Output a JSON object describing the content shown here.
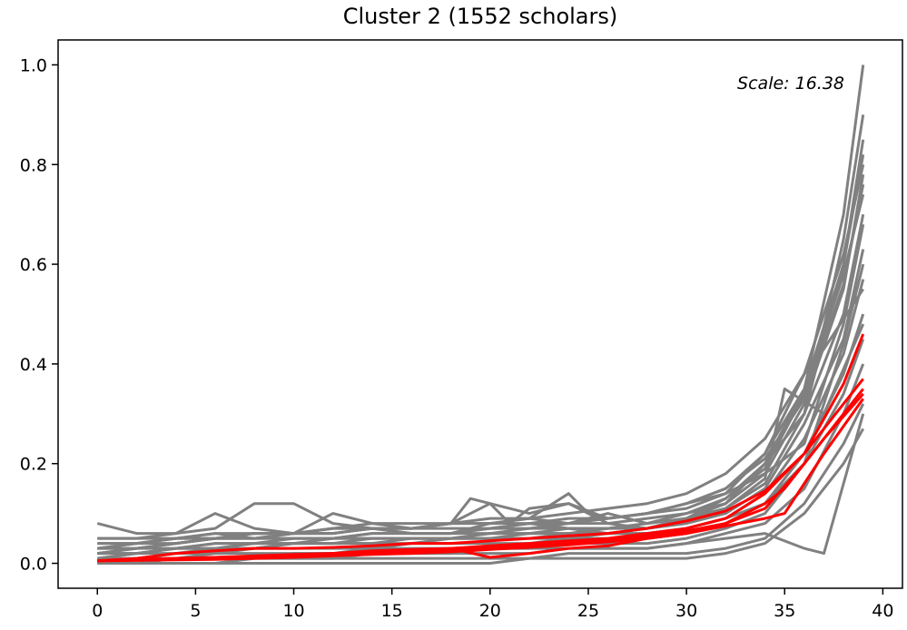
{
  "chart_data": {
    "type": "line",
    "title": "Cluster 2 (1552 scholars)",
    "xlabel": "",
    "ylabel": "",
    "xlim": [
      -2,
      41
    ],
    "ylim": [
      -0.05,
      1.05
    ],
    "x_ticks": [
      0,
      5,
      10,
      15,
      20,
      25,
      30,
      35,
      40
    ],
    "x_tick_labels": [
      "0",
      "5",
      "10",
      "15",
      "20",
      "25",
      "30",
      "35",
      "40"
    ],
    "y_ticks": [
      0.0,
      0.2,
      0.4,
      0.6,
      0.8,
      1.0
    ],
    "y_tick_labels": [
      "0.0",
      "0.2",
      "0.4",
      "0.6",
      "0.8",
      "1.0"
    ],
    "annotation": "Scale: 16.38",
    "grid": false,
    "colors": {
      "background_series": "#808080",
      "highlight_series": "#ff0000"
    },
    "background_series": [
      {
        "x": [
          0,
          2,
          4,
          6,
          8,
          10,
          12,
          14,
          16,
          18,
          20,
          22,
          24,
          26,
          28,
          30,
          32,
          34,
          36,
          38,
          39
        ],
        "y": [
          0.04,
          0.04,
          0.05,
          0.05,
          0.05,
          0.05,
          0.05,
          0.05,
          0.05,
          0.05,
          0.05,
          0.06,
          0.06,
          0.06,
          0.07,
          0.09,
          0.12,
          0.2,
          0.35,
          0.7,
          1.0
        ]
      },
      {
        "x": [
          0,
          2,
          4,
          6,
          8,
          10,
          12,
          14,
          16,
          18,
          20,
          22,
          24,
          26,
          28,
          30,
          32,
          34,
          36,
          38,
          39
        ],
        "y": [
          0.08,
          0.06,
          0.06,
          0.07,
          0.12,
          0.12,
          0.08,
          0.07,
          0.06,
          0.06,
          0.07,
          0.08,
          0.07,
          0.06,
          0.07,
          0.09,
          0.12,
          0.2,
          0.3,
          0.65,
          0.9
        ]
      },
      {
        "x": [
          0,
          2,
          4,
          6,
          8,
          10,
          12,
          14,
          16,
          18,
          20,
          22,
          24,
          26,
          28,
          30,
          32,
          34,
          36,
          38,
          39
        ],
        "y": [
          0.05,
          0.05,
          0.06,
          0.1,
          0.07,
          0.06,
          0.1,
          0.08,
          0.07,
          0.08,
          0.12,
          0.1,
          0.12,
          0.08,
          0.07,
          0.09,
          0.13,
          0.2,
          0.3,
          0.6,
          0.85
        ]
      },
      {
        "x": [
          0,
          2,
          4,
          6,
          8,
          10,
          12,
          14,
          16,
          18,
          20,
          22,
          24,
          26,
          28,
          30,
          32,
          34,
          36,
          38,
          39
        ],
        "y": [
          0.03,
          0.04,
          0.05,
          0.06,
          0.05,
          0.06,
          0.06,
          0.07,
          0.06,
          0.06,
          0.08,
          0.09,
          0.08,
          0.1,
          0.08,
          0.1,
          0.12,
          0.18,
          0.32,
          0.55,
          0.78
        ]
      },
      {
        "x": [
          0,
          2,
          4,
          6,
          8,
          10,
          12,
          14,
          16,
          18,
          20,
          22,
          24,
          26,
          28,
          30,
          32,
          34,
          36,
          38,
          39
        ],
        "y": [
          0.02,
          0.03,
          0.04,
          0.05,
          0.05,
          0.05,
          0.05,
          0.06,
          0.06,
          0.06,
          0.06,
          0.07,
          0.07,
          0.07,
          0.08,
          0.09,
          0.11,
          0.16,
          0.3,
          0.5,
          0.7
        ]
      },
      {
        "x": [
          0,
          2,
          4,
          6,
          8,
          10,
          12,
          14,
          16,
          18,
          20,
          22,
          24,
          26,
          28,
          30,
          32,
          34,
          36,
          38,
          39
        ],
        "y": [
          0.02,
          0.03,
          0.03,
          0.04,
          0.04,
          0.04,
          0.05,
          0.05,
          0.05,
          0.05,
          0.06,
          0.06,
          0.06,
          0.07,
          0.07,
          0.08,
          0.1,
          0.15,
          0.28,
          0.45,
          0.63
        ]
      },
      {
        "x": [
          0,
          2,
          4,
          6,
          8,
          10,
          12,
          14,
          16,
          18,
          20,
          22,
          24,
          26,
          28,
          30,
          32,
          34,
          36,
          38,
          39
        ],
        "y": [
          0.01,
          0.02,
          0.03,
          0.03,
          0.04,
          0.04,
          0.04,
          0.04,
          0.05,
          0.05,
          0.05,
          0.05,
          0.05,
          0.06,
          0.06,
          0.07,
          0.09,
          0.14,
          0.25,
          0.42,
          0.57
        ]
      },
      {
        "x": [
          0,
          2,
          4,
          6,
          8,
          10,
          12,
          14,
          16,
          18,
          20,
          22,
          24,
          26,
          28,
          30,
          32,
          34,
          36,
          38,
          39
        ],
        "y": [
          0.01,
          0.01,
          0.02,
          0.02,
          0.03,
          0.03,
          0.03,
          0.03,
          0.04,
          0.04,
          0.04,
          0.04,
          0.05,
          0.05,
          0.05,
          0.06,
          0.08,
          0.12,
          0.22,
          0.38,
          0.5
        ]
      },
      {
        "x": [
          0,
          2,
          4,
          6,
          8,
          10,
          12,
          14,
          16,
          18,
          20,
          22,
          24,
          26,
          28,
          30,
          32,
          34,
          36,
          38,
          39
        ],
        "y": [
          0.0,
          0.01,
          0.01,
          0.02,
          0.02,
          0.02,
          0.02,
          0.03,
          0.03,
          0.03,
          0.03,
          0.03,
          0.04,
          0.04,
          0.04,
          0.05,
          0.07,
          0.1,
          0.2,
          0.34,
          0.45
        ]
      },
      {
        "x": [
          0,
          2,
          4,
          6,
          8,
          10,
          12,
          14,
          16,
          18,
          20,
          22,
          24,
          26,
          28,
          30,
          32,
          34,
          36,
          38,
          39
        ],
        "y": [
          0.0,
          0.0,
          0.01,
          0.01,
          0.01,
          0.01,
          0.01,
          0.02,
          0.02,
          0.02,
          0.02,
          0.02,
          0.03,
          0.03,
          0.03,
          0.04,
          0.06,
          0.08,
          0.15,
          0.3,
          0.4
        ]
      },
      {
        "x": [
          0,
          2,
          4,
          6,
          8,
          10,
          12,
          14,
          16,
          18,
          20,
          22,
          24,
          26,
          28,
          30,
          32,
          34,
          36,
          38,
          39
        ],
        "y": [
          0.0,
          0.0,
          0.0,
          0.0,
          0.01,
          0.01,
          0.01,
          0.01,
          0.01,
          0.01,
          0.01,
          0.01,
          0.02,
          0.02,
          0.02,
          0.02,
          0.03,
          0.05,
          0.12,
          0.24,
          0.32
        ]
      },
      {
        "x": [
          0,
          2,
          4,
          6,
          8,
          10,
          12,
          14,
          16,
          18,
          20,
          22,
          24,
          26,
          28,
          30,
          32,
          34,
          36,
          38,
          39
        ],
        "y": [
          0.0,
          0.0,
          0.0,
          0.0,
          0.0,
          0.0,
          0.0,
          0.0,
          0.0,
          0.0,
          0.0,
          0.01,
          0.01,
          0.01,
          0.01,
          0.01,
          0.02,
          0.04,
          0.1,
          0.2,
          0.27
        ]
      },
      {
        "x": [
          0,
          2,
          4,
          6,
          8,
          10,
          12,
          14,
          16,
          18,
          20,
          22,
          24,
          26,
          28,
          30,
          32,
          34,
          36,
          38,
          39
        ],
        "y": [
          0.03,
          0.04,
          0.04,
          0.05,
          0.06,
          0.06,
          0.07,
          0.07,
          0.07,
          0.08,
          0.08,
          0.08,
          0.09,
          0.09,
          0.1,
          0.11,
          0.14,
          0.22,
          0.38,
          0.62,
          0.8
        ]
      },
      {
        "x": [
          0,
          2,
          4,
          6,
          8,
          10,
          12,
          14,
          16,
          18,
          20,
          22,
          24,
          26,
          28,
          30,
          32,
          34,
          36,
          38,
          39
        ],
        "y": [
          0.02,
          0.02,
          0.03,
          0.04,
          0.04,
          0.05,
          0.05,
          0.06,
          0.06,
          0.06,
          0.07,
          0.07,
          0.08,
          0.08,
          0.09,
          0.1,
          0.13,
          0.19,
          0.34,
          0.58,
          0.74
        ]
      },
      {
        "x": [
          0,
          2,
          4,
          6,
          8,
          10,
          12,
          14,
          16,
          18,
          20,
          22,
          24,
          26,
          28,
          30,
          32,
          34,
          36,
          38,
          39
        ],
        "y": [
          0.05,
          0.05,
          0.05,
          0.06,
          0.06,
          0.06,
          0.06,
          0.07,
          0.07,
          0.07,
          0.07,
          0.08,
          0.08,
          0.09,
          0.1,
          0.12,
          0.14,
          0.18,
          0.24,
          0.48,
          0.68
        ]
      },
      {
        "x": [
          0,
          2,
          4,
          6,
          8,
          10,
          12,
          14,
          16,
          18,
          20,
          22,
          24,
          26,
          28,
          30,
          32,
          34,
          36,
          38,
          39
        ],
        "y": [
          0.01,
          0.02,
          0.02,
          0.03,
          0.03,
          0.04,
          0.04,
          0.04,
          0.04,
          0.05,
          0.05,
          0.05,
          0.06,
          0.06,
          0.06,
          0.07,
          0.09,
          0.12,
          0.2,
          0.44,
          0.6
        ]
      },
      {
        "x": [
          0,
          2,
          4,
          6,
          8,
          10,
          12,
          14,
          16,
          18,
          20,
          22,
          24,
          26,
          28,
          30,
          32,
          34,
          36,
          37,
          39
        ],
        "y": [
          0.03,
          0.03,
          0.04,
          0.05,
          0.06,
          0.06,
          0.07,
          0.08,
          0.08,
          0.08,
          0.09,
          0.09,
          0.1,
          0.11,
          0.12,
          0.14,
          0.18,
          0.25,
          0.38,
          0.43,
          0.55
        ]
      },
      {
        "x": [
          0,
          2,
          4,
          6,
          8,
          10,
          12,
          14,
          16,
          18,
          20,
          22,
          24,
          26,
          28,
          30,
          32,
          34,
          35,
          37,
          39
        ],
        "y": [
          0.02,
          0.02,
          0.03,
          0.03,
          0.03,
          0.04,
          0.04,
          0.05,
          0.05,
          0.05,
          0.06,
          0.06,
          0.07,
          0.07,
          0.08,
          0.09,
          0.11,
          0.17,
          0.35,
          0.3,
          0.48
        ]
      },
      {
        "x": [
          0,
          2,
          4,
          6,
          8,
          10,
          12,
          14,
          16,
          18,
          20,
          22,
          24,
          26,
          28,
          30,
          32,
          34,
          36,
          37,
          39
        ],
        "y": [
          0.0,
          0.01,
          0.01,
          0.01,
          0.01,
          0.02,
          0.02,
          0.02,
          0.02,
          0.02,
          0.03,
          0.03,
          0.03,
          0.03,
          0.03,
          0.04,
          0.05,
          0.06,
          0.03,
          0.02,
          0.3
        ]
      },
      {
        "x": [
          0,
          2,
          4,
          6,
          8,
          10,
          12,
          14,
          16,
          18,
          19,
          20,
          21,
          22,
          24,
          26,
          28,
          30,
          32,
          34,
          36,
          38,
          39
        ],
        "y": [
          0.04,
          0.04,
          0.05,
          0.05,
          0.06,
          0.06,
          0.07,
          0.07,
          0.07,
          0.08,
          0.13,
          0.12,
          0.08,
          0.11,
          0.12,
          0.09,
          0.1,
          0.12,
          0.15,
          0.22,
          0.35,
          0.6,
          0.82
        ]
      },
      {
        "x": [
          0,
          2,
          4,
          6,
          8,
          10,
          12,
          14,
          16,
          18,
          20,
          22,
          24,
          25,
          26,
          28,
          30,
          32,
          34,
          36,
          38,
          39
        ],
        "y": [
          0.03,
          0.03,
          0.04,
          0.05,
          0.05,
          0.06,
          0.06,
          0.07,
          0.07,
          0.08,
          0.08,
          0.09,
          0.14,
          0.1,
          0.09,
          0.1,
          0.12,
          0.15,
          0.21,
          0.33,
          0.56,
          0.76
        ]
      }
    ],
    "highlight_series": [
      {
        "x": [
          0,
          2,
          4,
          6,
          8,
          10,
          12,
          14,
          16,
          18,
          20,
          22,
          24,
          26,
          28,
          30,
          32,
          34,
          36,
          38,
          39
        ],
        "y": [
          0.005,
          0.01,
          0.02,
          0.025,
          0.03,
          0.03,
          0.032,
          0.035,
          0.04,
          0.04,
          0.045,
          0.05,
          0.055,
          0.06,
          0.07,
          0.085,
          0.105,
          0.145,
          0.22,
          0.36,
          0.46
        ]
      },
      {
        "x": [
          0,
          2,
          4,
          6,
          8,
          10,
          12,
          14,
          16,
          18,
          20,
          22,
          24,
          26,
          28,
          30,
          32,
          34,
          36,
          38,
          39
        ],
        "y": [
          0.005,
          0.008,
          0.01,
          0.012,
          0.015,
          0.018,
          0.02,
          0.022,
          0.025,
          0.03,
          0.035,
          0.04,
          0.045,
          0.05,
          0.06,
          0.07,
          0.09,
          0.14,
          0.22,
          0.32,
          0.37
        ]
      },
      {
        "x": [
          0,
          2,
          4,
          6,
          8,
          10,
          12,
          14,
          16,
          18,
          20,
          22,
          24,
          26,
          28,
          30,
          32,
          34,
          35,
          37,
          39
        ],
        "y": [
          0.005,
          0.006,
          0.008,
          0.01,
          0.012,
          0.015,
          0.018,
          0.02,
          0.022,
          0.025,
          0.03,
          0.035,
          0.04,
          0.045,
          0.055,
          0.065,
          0.08,
          0.12,
          0.15,
          0.25,
          0.34
        ]
      },
      {
        "x": [
          0,
          2,
          4,
          6,
          8,
          10,
          12,
          14,
          16,
          18,
          20,
          22,
          24,
          26,
          28,
          30,
          32,
          34,
          35,
          37,
          39
        ],
        "y": [
          0.005,
          0.006,
          0.007,
          0.008,
          0.01,
          0.012,
          0.015,
          0.018,
          0.02,
          0.023,
          0.028,
          0.032,
          0.037,
          0.043,
          0.05,
          0.06,
          0.075,
          0.09,
          0.1,
          0.22,
          0.33
        ]
      },
      {
        "x": [
          0,
          2,
          4,
          6,
          8,
          10,
          12,
          14,
          16,
          18,
          20,
          22,
          24,
          26,
          28,
          30,
          32,
          34,
          36,
          38,
          39
        ],
        "y": [
          0.005,
          0.008,
          0.01,
          0.012,
          0.014,
          0.016,
          0.02,
          0.025,
          0.028,
          0.03,
          0.012,
          0.02,
          0.03,
          0.035,
          0.05,
          0.06,
          0.08,
          0.11,
          0.2,
          0.3,
          0.35
        ]
      }
    ]
  }
}
